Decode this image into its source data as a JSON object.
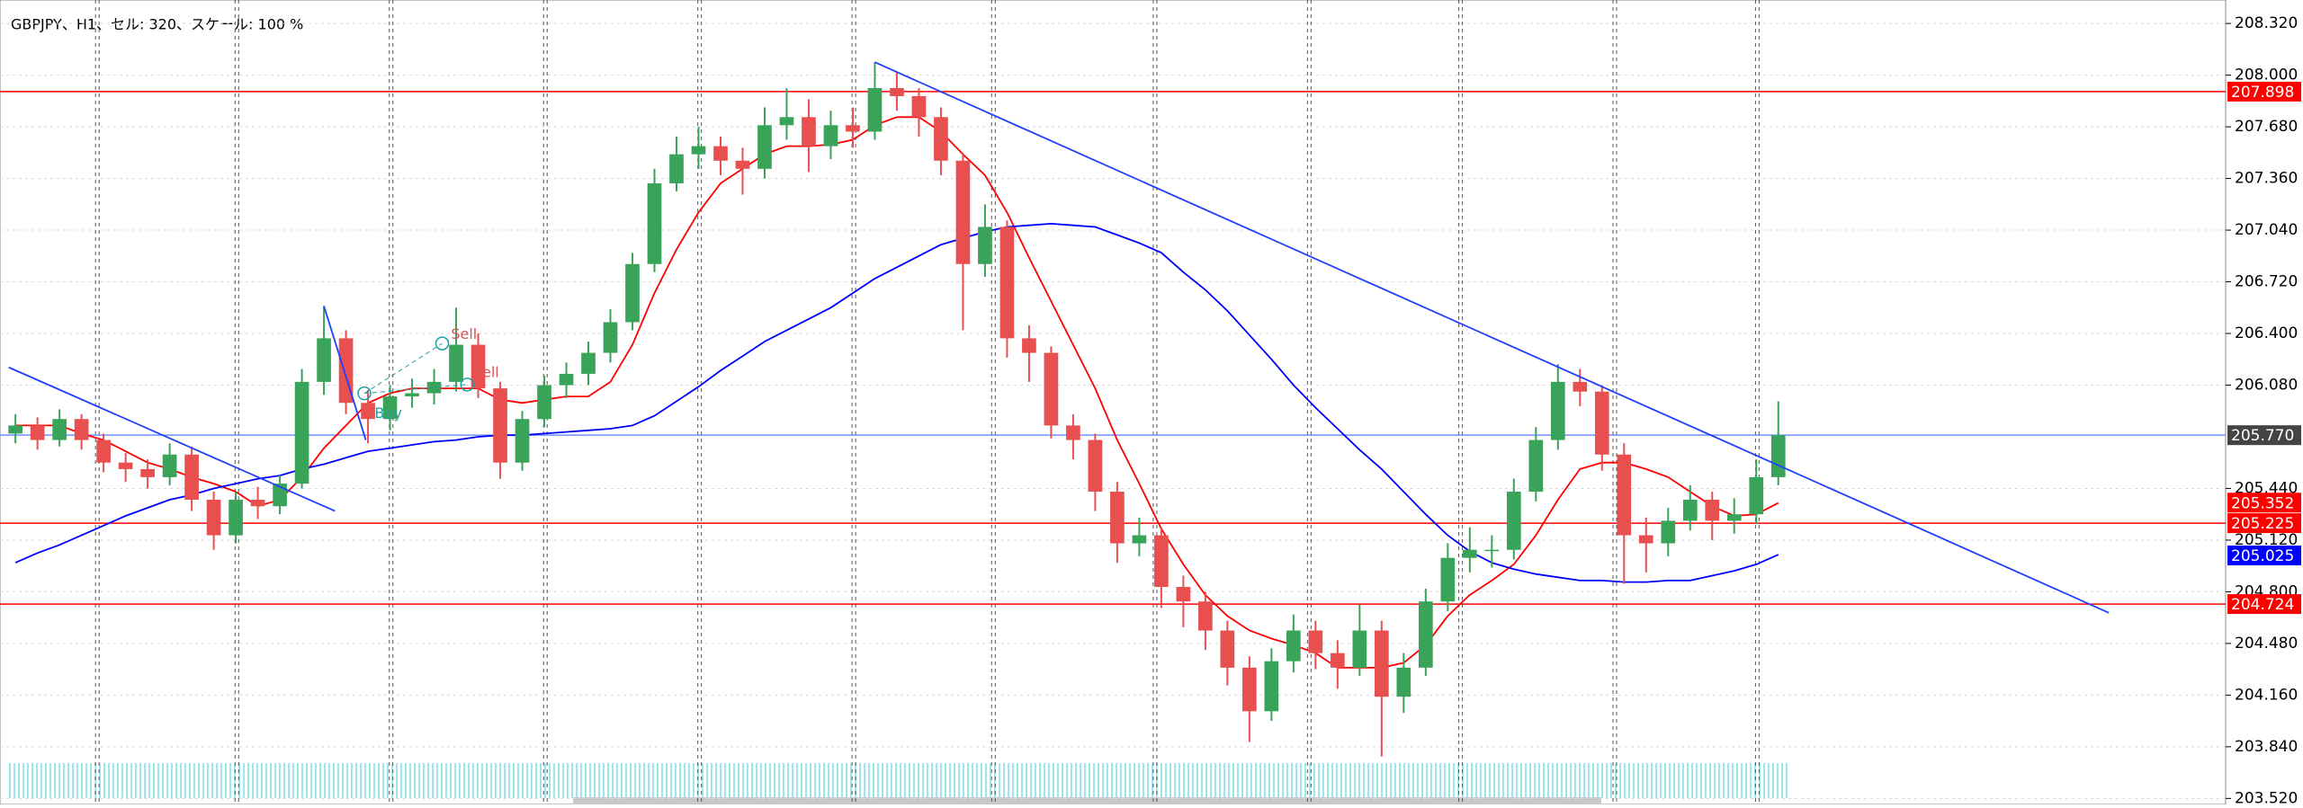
{
  "chart_data": {
    "type": "candlestick",
    "title": "GBPJPY、H1、セル: 320、スケール: 100 %",
    "up_color": "#3aa35a",
    "down_color": "#e85050",
    "ohlc": [
      [
        205.78,
        205.9,
        205.72,
        205.83
      ],
      [
        205.83,
        205.88,
        205.68,
        205.74
      ],
      [
        205.74,
        205.93,
        205.7,
        205.87
      ],
      [
        205.87,
        205.9,
        205.68,
        205.74
      ],
      [
        205.74,
        205.78,
        205.54,
        205.6
      ],
      [
        205.6,
        205.66,
        205.48,
        205.56
      ],
      [
        205.56,
        205.62,
        205.44,
        205.51
      ],
      [
        205.51,
        205.72,
        205.46,
        205.65
      ],
      [
        205.65,
        205.7,
        205.3,
        205.37
      ],
      [
        205.37,
        205.42,
        205.06,
        205.15
      ],
      [
        205.15,
        205.42,
        205.1,
        205.37
      ],
      [
        205.37,
        205.45,
        205.25,
        205.33
      ],
      [
        205.33,
        205.52,
        205.28,
        205.47
      ],
      [
        205.47,
        206.18,
        205.44,
        206.1
      ],
      [
        206.1,
        206.57,
        206.02,
        206.37
      ],
      [
        206.37,
        206.42,
        205.9,
        205.97
      ],
      [
        205.97,
        206.05,
        205.72,
        205.87
      ],
      [
        205.87,
        206.08,
        205.8,
        206.01
      ],
      [
        206.01,
        206.12,
        205.94,
        206.03
      ],
      [
        206.03,
        206.18,
        205.96,
        206.1
      ],
      [
        206.1,
        206.56,
        206.04,
        206.33
      ],
      [
        206.33,
        206.4,
        206.0,
        206.06
      ],
      [
        206.06,
        206.1,
        205.5,
        205.6
      ],
      [
        205.6,
        205.92,
        205.55,
        205.87
      ],
      [
        205.87,
        206.14,
        205.82,
        206.08
      ],
      [
        206.08,
        206.22,
        206.0,
        206.15
      ],
      [
        206.15,
        206.35,
        206.08,
        206.28
      ],
      [
        206.28,
        206.55,
        206.22,
        206.47
      ],
      [
        206.47,
        206.9,
        206.42,
        206.83
      ],
      [
        206.83,
        207.42,
        206.78,
        207.33
      ],
      [
        207.33,
        207.62,
        207.28,
        207.51
      ],
      [
        207.51,
        207.68,
        207.42,
        207.56
      ],
      [
        207.56,
        207.62,
        207.38,
        207.47
      ],
      [
        207.47,
        207.55,
        207.26,
        207.42
      ],
      [
        207.42,
        207.8,
        207.36,
        207.69
      ],
      [
        207.69,
        207.92,
        207.6,
        207.74
      ],
      [
        207.74,
        207.85,
        207.4,
        207.56
      ],
      [
        207.56,
        207.78,
        207.48,
        207.69
      ],
      [
        207.69,
        207.8,
        207.55,
        207.65
      ],
      [
        207.65,
        208.08,
        207.6,
        207.92
      ],
      [
        207.92,
        208.02,
        207.78,
        207.87
      ],
      [
        207.87,
        207.92,
        207.62,
        207.74
      ],
      [
        207.74,
        207.8,
        207.38,
        207.47
      ],
      [
        207.47,
        207.52,
        206.42,
        206.83
      ],
      [
        206.83,
        207.2,
        206.75,
        207.06
      ],
      [
        207.06,
        207.1,
        206.25,
        206.37
      ],
      [
        206.37,
        206.45,
        206.1,
        206.28
      ],
      [
        206.28,
        206.32,
        205.75,
        205.83
      ],
      [
        205.83,
        205.9,
        205.62,
        205.74
      ],
      [
        205.74,
        205.78,
        205.3,
        205.42
      ],
      [
        205.42,
        205.48,
        204.98,
        205.1
      ],
      [
        205.1,
        205.26,
        205.02,
        205.15
      ],
      [
        205.15,
        205.2,
        204.7,
        204.83
      ],
      [
        204.83,
        204.9,
        204.58,
        204.74
      ],
      [
        204.74,
        204.8,
        204.44,
        204.56
      ],
      [
        204.56,
        204.62,
        204.22,
        204.33
      ],
      [
        204.33,
        204.4,
        203.87,
        204.06
      ],
      [
        204.06,
        204.45,
        204.0,
        204.37
      ],
      [
        204.37,
        204.66,
        204.3,
        204.56
      ],
      [
        204.56,
        204.62,
        204.32,
        204.42
      ],
      [
        204.42,
        204.5,
        204.2,
        204.33
      ],
      [
        204.33,
        204.72,
        204.28,
        204.56
      ],
      [
        204.56,
        204.62,
        203.78,
        204.15
      ],
      [
        204.15,
        204.42,
        204.05,
        204.33
      ],
      [
        204.33,
        204.82,
        204.28,
        204.74
      ],
      [
        204.74,
        205.1,
        204.68,
        205.01
      ],
      [
        205.01,
        205.2,
        204.92,
        205.06
      ],
      [
        205.06,
        205.15,
        204.95,
        205.06
      ],
      [
        205.06,
        205.5,
        205.0,
        205.42
      ],
      [
        205.42,
        205.82,
        205.36,
        205.74
      ],
      [
        205.74,
        206.21,
        205.68,
        206.1
      ],
      [
        206.1,
        206.18,
        205.95,
        206.04
      ],
      [
        206.04,
        206.08,
        205.55,
        205.65
      ],
      [
        205.65,
        205.72,
        204.85,
        205.15
      ],
      [
        205.15,
        205.26,
        204.92,
        205.1
      ],
      [
        205.1,
        205.32,
        205.02,
        205.24
      ],
      [
        205.24,
        205.46,
        205.18,
        205.37
      ],
      [
        205.37,
        205.42,
        205.12,
        205.24
      ],
      [
        205.24,
        205.38,
        205.16,
        205.28
      ],
      [
        205.28,
        205.62,
        205.22,
        205.51
      ],
      [
        205.51,
        205.98,
        205.46,
        205.77
      ]
    ],
    "series": [
      {
        "color": "#ff0000",
        "values": [
          205.83,
          205.83,
          205.83,
          205.78,
          205.74,
          205.67,
          205.6,
          205.56,
          205.51,
          205.47,
          205.42,
          205.33,
          205.37,
          205.51,
          205.69,
          205.83,
          205.97,
          206.03,
          206.06,
          206.06,
          206.06,
          206.06,
          205.99,
          205.97,
          205.99,
          206.01,
          206.01,
          206.1,
          206.33,
          206.65,
          206.92,
          207.15,
          207.33,
          207.42,
          207.51,
          207.56,
          207.56,
          207.57,
          207.6,
          207.69,
          207.74,
          207.74,
          207.65,
          207.51,
          207.38,
          207.15,
          206.87,
          206.6,
          206.33,
          206.06,
          205.74,
          205.47,
          205.19,
          204.97,
          204.78,
          204.65,
          204.56,
          204.51,
          204.47,
          204.42,
          204.33,
          204.33,
          204.33,
          204.36,
          204.47,
          204.65,
          204.78,
          204.87,
          204.97,
          205.15,
          205.37,
          205.56,
          205.6,
          205.6,
          205.56,
          205.51,
          205.42,
          205.33,
          205.27,
          205.28,
          205.35
        ]
      },
      {
        "color": "#0000ff",
        "values": [
          204.98,
          205.04,
          205.09,
          205.15,
          205.21,
          205.27,
          205.32,
          205.37,
          205.4,
          205.44,
          205.47,
          205.5,
          205.52,
          205.56,
          205.59,
          205.63,
          205.67,
          205.69,
          205.71,
          205.73,
          205.74,
          205.76,
          205.77,
          205.77,
          205.78,
          205.79,
          205.8,
          205.81,
          205.83,
          205.89,
          205.98,
          206.07,
          206.17,
          206.26,
          206.35,
          206.42,
          206.49,
          206.56,
          206.65,
          206.74,
          206.81,
          206.88,
          206.95,
          206.99,
          207.03,
          207.06,
          207.07,
          207.08,
          207.07,
          207.06,
          207.01,
          206.96,
          206.9,
          206.78,
          206.67,
          206.54,
          206.39,
          206.24,
          206.08,
          205.94,
          205.81,
          205.68,
          205.56,
          205.42,
          205.28,
          205.15,
          205.05,
          204.98,
          204.94,
          204.91,
          204.89,
          204.87,
          204.87,
          204.86,
          204.86,
          204.87,
          204.87,
          204.9,
          204.93,
          204.97,
          205.03
        ]
      }
    ],
    "trendlines": [
      {
        "x": [
          39,
          95
        ],
        "y": [
          208.08,
          204.67
        ],
        "color": "#1f3fff"
      },
      {
        "x": [
          -0.3,
          14.5
        ],
        "y": [
          206.19,
          205.3
        ],
        "color": "#1f3fff"
      },
      {
        "x": [
          14,
          15.9
        ],
        "y": [
          206.57,
          205.74
        ],
        "color": "#1f3fff"
      }
    ],
    "price_labels": [
      {
        "value": 207.898,
        "label": "207.898",
        "color": "#ff0000",
        "line": true
      },
      {
        "value": 205.77,
        "label": "205.770",
        "color": "#444444",
        "line": true,
        "line_color": "#6f8fff"
      },
      {
        "value": 205.352,
        "label": "205.352",
        "color": "#ff0000",
        "line": false
      },
      {
        "value": 205.225,
        "label": "205.225",
        "color": "#ff0000",
        "line": true
      },
      {
        "value": 205.025,
        "label": "205.025",
        "color": "#0000ff",
        "line": false
      },
      {
        "value": 204.724,
        "label": "204.724",
        "color": "#ff0000",
        "line": true
      }
    ],
    "annotations": [
      {
        "text": "Sell",
        "color": "#e05050"
      },
      {
        "text": "Sell",
        "color": "#e05050"
      },
      {
        "text": "Buy",
        "color": "#20a0a0"
      }
    ],
    "xlim": [
      -0.7,
      100.3
    ],
    "ylim": [
      203.52,
      208.32
    ],
    "yticks": [
      {
        "value": 208.32,
        "label": "208.320"
      },
      {
        "value": 208.0,
        "label": "208.000"
      },
      {
        "value": 207.68,
        "label": "207.680"
      },
      {
        "value": 207.36,
        "label": "207.360"
      },
      {
        "value": 207.04,
        "label": "207.040"
      },
      {
        "value": 206.72,
        "label": "206.720"
      },
      {
        "value": 206.4,
        "label": "206.400"
      },
      {
        "value": 206.08,
        "label": "206.080"
      },
      {
        "value": 205.44,
        "label": "205.440"
      },
      {
        "value": 205.12,
        "label": "205.120"
      },
      {
        "value": 204.8,
        "label": "204.800"
      },
      {
        "value": 204.48,
        "label": "204.480"
      },
      {
        "value": 204.16,
        "label": "204.160"
      },
      {
        "value": 203.84,
        "label": "203.840"
      },
      {
        "value": 203.52,
        "label": "203.520"
      }
    ],
    "grid": true
  }
}
